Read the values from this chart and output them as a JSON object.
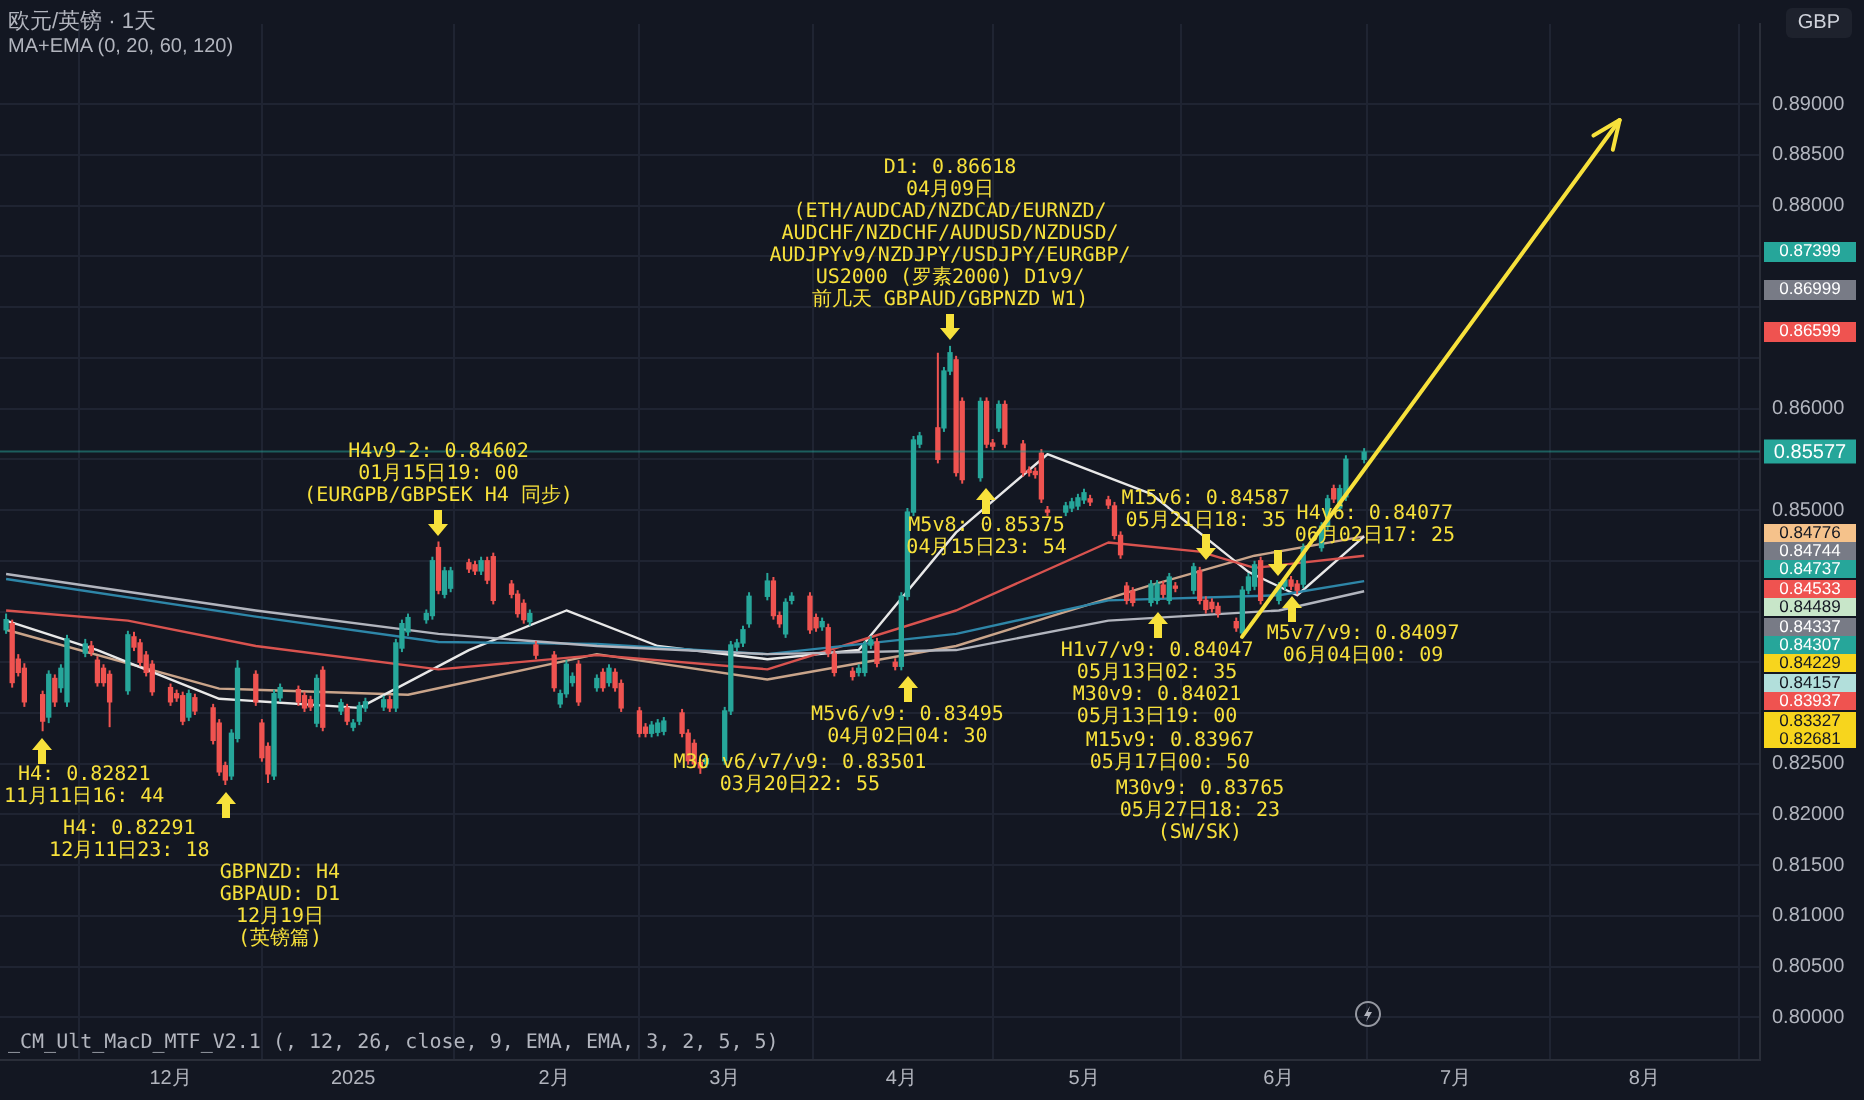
{
  "chart_data": {
    "type": "candlestick",
    "title": "欧元/英镑 · 1天",
    "subtitle": "MA+EMA (0, 20, 60, 120)",
    "x": [
      "2024-11-05",
      "2024-11-06",
      "2024-11-07",
      "2024-11-08",
      "2024-11-11",
      "2024-11-12",
      "2024-11-13",
      "2024-11-14",
      "2024-11-15",
      "2024-11-18",
      "2024-11-19",
      "2024-11-20",
      "2024-11-21",
      "2024-11-22",
      "2024-11-25",
      "2024-11-26",
      "2024-11-27",
      "2024-11-28",
      "2024-11-29",
      "2024-12-02",
      "2024-12-03",
      "2024-12-04",
      "2024-12-05",
      "2024-12-06",
      "2024-12-09",
      "2024-12-10",
      "2024-12-11",
      "2024-12-12",
      "2024-12-13",
      "2024-12-16",
      "2024-12-17",
      "2024-12-18",
      "2024-12-19",
      "2024-12-20",
      "2024-12-23",
      "2024-12-24",
      "2024-12-25",
      "2024-12-26",
      "2024-12-27",
      "2024-12-30",
      "2024-12-31",
      "2025-01-01",
      "2025-01-02",
      "2025-01-03",
      "2025-01-06",
      "2025-01-07",
      "2025-01-08",
      "2025-01-09",
      "2025-01-10",
      "2025-01-13",
      "2025-01-14",
      "2025-01-15",
      "2025-01-16",
      "2025-01-17",
      "2025-01-20",
      "2025-01-21",
      "2025-01-22",
      "2025-01-23",
      "2025-01-24",
      "2025-01-27",
      "2025-01-28",
      "2025-01-29",
      "2025-01-30",
      "2025-01-31",
      "2025-02-03",
      "2025-02-04",
      "2025-02-05",
      "2025-02-06",
      "2025-02-07",
      "2025-02-10",
      "2025-02-11",
      "2025-02-12",
      "2025-02-13",
      "2025-02-14",
      "2025-02-17",
      "2025-02-18",
      "2025-02-19",
      "2025-02-20",
      "2025-02-21",
      "2025-02-24",
      "2025-02-25",
      "2025-02-26",
      "2025-02-27",
      "2025-02-28",
      "2025-03-03",
      "2025-03-04",
      "2025-03-05",
      "2025-03-06",
      "2025-03-07",
      "2025-03-10",
      "2025-03-11",
      "2025-03-12",
      "2025-03-13",
      "2025-03-14",
      "2025-03-17",
      "2025-03-18",
      "2025-03-19",
      "2025-03-20",
      "2025-03-21",
      "2025-03-24",
      "2025-03-25",
      "2025-03-26",
      "2025-03-27",
      "2025-03-28",
      "2025-03-31",
      "2025-04-01",
      "2025-04-02",
      "2025-04-03",
      "2025-04-04",
      "2025-04-07",
      "2025-04-08",
      "2025-04-09",
      "2025-04-10",
      "2025-04-11",
      "2025-04-14",
      "2025-04-15",
      "2025-04-16",
      "2025-04-17",
      "2025-04-18",
      "2025-04-21",
      "2025-04-22",
      "2025-04-23",
      "2025-04-24",
      "2025-04-25",
      "2025-04-28",
      "2025-04-29",
      "2025-04-30",
      "2025-05-01",
      "2025-05-02",
      "2025-05-05",
      "2025-05-06",
      "2025-05-07",
      "2025-05-08",
      "2025-05-09",
      "2025-05-12",
      "2025-05-13",
      "2025-05-14",
      "2025-05-15",
      "2025-05-16",
      "2025-05-19",
      "2025-05-20",
      "2025-05-21",
      "2025-05-22",
      "2025-05-23",
      "2025-05-26",
      "2025-05-27",
      "2025-05-28",
      "2025-05-29",
      "2025-05-30",
      "2025-06-02",
      "2025-06-03",
      "2025-06-04",
      "2025-06-05",
      "2025-06-06",
      "2025-06-09",
      "2025-06-10",
      "2025-06-11",
      "2025-06-12",
      "2025-06-13",
      "2025-06-16"
    ],
    "ohlc": [
      [
        0.8382,
        0.8398,
        0.8378,
        0.8392
      ],
      [
        0.8388,
        0.8392,
        0.8325,
        0.833
      ],
      [
        0.8353,
        0.8358,
        0.8336,
        0.834
      ],
      [
        0.8344,
        0.8349,
        0.8306,
        0.8311
      ],
      [
        0.8318,
        0.8322,
        0.8282,
        0.8292
      ],
      [
        0.8296,
        0.8342,
        0.829,
        0.8338
      ],
      [
        0.8334,
        0.8338,
        0.8306,
        0.8311
      ],
      [
        0.8325,
        0.8348,
        0.832,
        0.8344
      ],
      [
        0.8311,
        0.8377,
        0.8306,
        0.8373
      ],
      [
        0.8359,
        0.8373,
        0.8355,
        0.8368
      ],
      [
        0.8366,
        0.8371,
        0.8356,
        0.836
      ],
      [
        0.8352,
        0.8356,
        0.8326,
        0.833
      ],
      [
        0.8344,
        0.8348,
        0.8326,
        0.833
      ],
      [
        0.8338,
        0.8342,
        0.8286,
        0.8311
      ],
      [
        0.8322,
        0.8381,
        0.8318,
        0.8377
      ],
      [
        0.8375,
        0.838,
        0.8361,
        0.8365
      ],
      [
        0.8369,
        0.8373,
        0.8346,
        0.835
      ],
      [
        0.8357,
        0.8361,
        0.8336,
        0.834
      ],
      [
        0.8348,
        0.8352,
        0.8317,
        0.8321
      ],
      [
        0.8325,
        0.8329,
        0.8307,
        0.8311
      ],
      [
        0.8319,
        0.8323,
        0.8311,
        0.8315
      ],
      [
        0.8317,
        0.8321,
        0.8288,
        0.8292
      ],
      [
        0.8296,
        0.8323,
        0.8292,
        0.8319
      ],
      [
        0.8315,
        0.8319,
        0.8298,
        0.8302
      ],
      [
        0.8305,
        0.8309,
        0.8269,
        0.8273
      ],
      [
        0.829,
        0.8294,
        0.8238,
        0.8242
      ],
      [
        0.8248,
        0.8252,
        0.8229,
        0.8234
      ],
      [
        0.8238,
        0.8284,
        0.8234,
        0.828
      ],
      [
        0.8275,
        0.8352,
        0.8271,
        0.8344
      ],
      [
        0.8338,
        0.8342,
        0.8307,
        0.8311
      ],
      [
        0.829,
        0.8294,
        0.8252,
        0.8256
      ],
      [
        0.8267,
        0.8271,
        0.8231,
        0.824
      ],
      [
        0.8238,
        0.8323,
        0.8234,
        0.8319
      ],
      [
        0.8315,
        0.8329,
        0.8311,
        0.8325
      ],
      [
        0.8323,
        0.8327,
        0.8307,
        0.8311
      ],
      [
        0.8317,
        0.8321,
        0.8301,
        0.8305
      ],
      [
        0.8313,
        0.8317,
        0.8302,
        0.8306
      ],
      [
        0.829,
        0.8338,
        0.8286,
        0.8334
      ],
      [
        0.8342,
        0.8346,
        0.8282,
        0.8286
      ],
      [
        0.8302,
        0.8314,
        0.8298,
        0.831
      ],
      [
        0.8305,
        0.8309,
        0.8288,
        0.8292
      ],
      [
        0.8286,
        0.8294,
        0.8282,
        0.829
      ],
      [
        0.8292,
        0.8311,
        0.8288,
        0.8307
      ],
      [
        0.8305,
        0.8315,
        0.8301,
        0.8311
      ],
      [
        0.8306,
        0.8317,
        0.8302,
        0.8313
      ],
      [
        0.8313,
        0.8317,
        0.8301,
        0.8305
      ],
      [
        0.8305,
        0.8373,
        0.8301,
        0.8369
      ],
      [
        0.8364,
        0.8392,
        0.836,
        0.8388
      ],
      [
        0.838,
        0.8398,
        0.8376,
        0.8394
      ],
      [
        0.8392,
        0.8402,
        0.8388,
        0.8398
      ],
      [
        0.8396,
        0.8454,
        0.8392,
        0.845
      ],
      [
        0.8463,
        0.8469,
        0.8417,
        0.8421
      ],
      [
        0.8417,
        0.8444,
        0.8413,
        0.844
      ],
      [
        0.8423,
        0.8444,
        0.8419,
        0.844
      ],
      [
        0.8448,
        0.8452,
        0.8438,
        0.8442
      ],
      [
        0.8446,
        0.845,
        0.8436,
        0.844
      ],
      [
        0.844,
        0.8454,
        0.8436,
        0.845
      ],
      [
        0.845,
        0.8454,
        0.8427,
        0.8431
      ],
      [
        0.8454,
        0.8458,
        0.8407,
        0.8411
      ],
      [
        0.8427,
        0.8431,
        0.8413,
        0.8417
      ],
      [
        0.8417,
        0.8421,
        0.8394,
        0.8398
      ],
      [
        0.8408,
        0.8412,
        0.8388,
        0.8392
      ],
      [
        0.839,
        0.8402,
        0.8386,
        0.8398
      ],
      [
        0.8367,
        0.8371,
        0.8353,
        0.8357
      ],
      [
        0.8357,
        0.8361,
        0.8321,
        0.8325
      ],
      [
        0.8309,
        0.8323,
        0.8305,
        0.8319
      ],
      [
        0.8319,
        0.8352,
        0.8315,
        0.8348
      ],
      [
        0.833,
        0.834,
        0.8326,
        0.8336
      ],
      [
        0.8348,
        0.8352,
        0.8307,
        0.8311
      ],
      [
        0.8325,
        0.8338,
        0.8321,
        0.8334
      ],
      [
        0.834,
        0.8344,
        0.8321,
        0.8325
      ],
      [
        0.833,
        0.8348,
        0.8326,
        0.8344
      ],
      [
        0.834,
        0.8344,
        0.8321,
        0.8325
      ],
      [
        0.8329,
        0.8333,
        0.8301,
        0.8305
      ],
      [
        0.8302,
        0.8306,
        0.8276,
        0.828
      ],
      [
        0.8286,
        0.829,
        0.8276,
        0.828
      ],
      [
        0.828,
        0.8292,
        0.8276,
        0.8288
      ],
      [
        0.8281,
        0.8294,
        0.8277,
        0.829
      ],
      [
        0.8282,
        0.8296,
        0.8278,
        0.8292
      ],
      [
        0.83,
        0.8304,
        0.8276,
        0.828
      ],
      [
        0.828,
        0.8284,
        0.8249,
        0.8253
      ],
      [
        0.827,
        0.8274,
        0.8246,
        0.825
      ],
      [
        0.8251,
        0.8255,
        0.824,
        0.8246
      ],
      [
        0.825,
        0.8259,
        0.8246,
        0.8255
      ],
      [
        0.8253,
        0.8306,
        0.8249,
        0.8302
      ],
      [
        0.8302,
        0.8371,
        0.8298,
        0.8367
      ],
      [
        0.8365,
        0.8373,
        0.8361,
        0.8369
      ],
      [
        0.8369,
        0.8386,
        0.8365,
        0.8382
      ],
      [
        0.8388,
        0.8419,
        0.8384,
        0.8415
      ],
      [
        0.8415,
        0.8438,
        0.8411,
        0.843
      ],
      [
        0.843,
        0.8434,
        0.8392,
        0.8396
      ],
      [
        0.8396,
        0.84,
        0.8384,
        0.8388
      ],
      [
        0.8378,
        0.8413,
        0.8374,
        0.8409
      ],
      [
        0.8411,
        0.8419,
        0.8407,
        0.8415
      ],
      [
        0.8415,
        0.8419,
        0.8378,
        0.8382
      ],
      [
        0.8394,
        0.8398,
        0.838,
        0.8384
      ],
      [
        0.8385,
        0.8394,
        0.8381,
        0.839
      ],
      [
        0.8384,
        0.8388,
        0.8355,
        0.8359
      ],
      [
        0.8358,
        0.8362,
        0.8336,
        0.834
      ],
      [
        0.8341,
        0.8345,
        0.8332,
        0.8336
      ],
      [
        0.834,
        0.8348,
        0.8336,
        0.8344
      ],
      [
        0.834,
        0.8371,
        0.8336,
        0.8367
      ],
      [
        0.8367,
        0.8376,
        0.8363,
        0.8372
      ],
      [
        0.837,
        0.8374,
        0.8345,
        0.8349
      ],
      [
        0.835,
        0.8354,
        0.8342,
        0.8346
      ],
      [
        0.8346,
        0.8419,
        0.8342,
        0.8415
      ],
      [
        0.8415,
        0.8502,
        0.8411,
        0.8498
      ],
      [
        0.8498,
        0.8573,
        0.8494,
        0.8569
      ],
      [
        0.8565,
        0.8577,
        0.8561,
        0.8573
      ],
      [
        0.8581,
        0.8655,
        0.8546,
        0.855
      ],
      [
        0.8581,
        0.8641,
        0.8577,
        0.8637
      ],
      [
        0.8637,
        0.86618,
        0.8633,
        0.8655
      ],
      [
        0.8648,
        0.8652,
        0.8533,
        0.8537
      ],
      [
        0.8607,
        0.8611,
        0.8526,
        0.853
      ],
      [
        0.8532,
        0.8611,
        0.8528,
        0.8607
      ],
      [
        0.8607,
        0.8611,
        0.8561,
        0.8565
      ],
      [
        0.8566,
        0.857,
        0.8559,
        0.8563
      ],
      [
        0.8581,
        0.8608,
        0.8577,
        0.8604
      ],
      [
        0.8604,
        0.8608,
        0.8561,
        0.8565
      ],
      [
        0.8565,
        0.8569,
        0.8533,
        0.8537
      ],
      [
        0.8539,
        0.8543,
        0.8533,
        0.8537
      ],
      [
        0.8538,
        0.8542,
        0.8531,
        0.8535
      ],
      [
        0.8556,
        0.856,
        0.8507,
        0.8511
      ],
      [
        0.85,
        0.8504,
        0.8494,
        0.8498
      ],
      [
        0.8498,
        0.8508,
        0.8494,
        0.8504
      ],
      [
        0.8502,
        0.8512,
        0.8498,
        0.8508
      ],
      [
        0.8504,
        0.8516,
        0.85,
        0.8512
      ],
      [
        0.851,
        0.8521,
        0.8506,
        0.8517
      ],
      [
        0.8511,
        0.8515,
        0.8504,
        0.8508
      ],
      [
        0.851,
        0.8514,
        0.8501,
        0.8505
      ],
      [
        0.8504,
        0.8508,
        0.8471,
        0.8475
      ],
      [
        0.8475,
        0.8479,
        0.8452,
        0.8456
      ],
      [
        0.8425,
        0.8429,
        0.8407,
        0.8411
      ],
      [
        0.842,
        0.8424,
        0.8405,
        0.8409
      ],
      [
        0.8409,
        0.8431,
        0.8405,
        0.8427
      ],
      [
        0.8411,
        0.8431,
        0.8407,
        0.8427
      ],
      [
        0.8426,
        0.843,
        0.8413,
        0.8417
      ],
      [
        0.8411,
        0.8438,
        0.8407,
        0.8434
      ],
      [
        0.8425,
        0.8429,
        0.8419,
        0.8423
      ],
      [
        0.8421,
        0.8448,
        0.8417,
        0.8444
      ],
      [
        0.844,
        0.8444,
        0.8407,
        0.8411
      ],
      [
        0.8411,
        0.8415,
        0.8398,
        0.8402
      ],
      [
        0.8409,
        0.8413,
        0.8399,
        0.8403
      ],
      [
        0.8405,
        0.8409,
        0.8394,
        0.8398
      ],
      [
        0.839,
        0.8394,
        0.838,
        0.8384
      ],
      [
        0.8379,
        0.8425,
        0.8375,
        0.8421
      ],
      [
        0.8421,
        0.8438,
        0.8417,
        0.8434
      ],
      [
        0.8425,
        0.845,
        0.8421,
        0.8446
      ],
      [
        0.845,
        0.8454,
        0.8407,
        0.8411
      ],
      [
        0.8411,
        0.8429,
        0.8407,
        0.8425
      ],
      [
        0.8425,
        0.8435,
        0.8421,
        0.8431
      ],
      [
        0.8431,
        0.8435,
        0.8421,
        0.8425
      ],
      [
        0.8427,
        0.8431,
        0.8417,
        0.8421
      ],
      [
        0.8427,
        0.8467,
        0.8423,
        0.8463
      ],
      [
        0.8463,
        0.8488,
        0.8459,
        0.8484
      ],
      [
        0.8484,
        0.8515,
        0.848,
        0.8511
      ],
      [
        0.8521,
        0.8525,
        0.8507,
        0.8511
      ],
      [
        0.8502,
        0.8525,
        0.8498,
        0.8521
      ],
      [
        0.8513,
        0.8554,
        0.8509,
        0.855
      ],
      [
        0.855,
        0.8561,
        0.8546,
        0.8557
      ]
    ],
    "series": [
      {
        "type": "line",
        "color": "#b2b5be",
        "x": [
          "2024-11-05",
          "2024-12-16",
          "2025-01-15",
          "2025-02-10",
          "2025-03-10",
          "2025-04-10",
          "2025-05-05",
          "2025-06-02",
          "2025-06-16"
        ],
        "values": [
          0.8437,
          0.8401,
          0.8378,
          0.8366,
          0.8358,
          0.8362,
          0.8391,
          0.8401,
          0.842
        ]
      },
      {
        "type": "line",
        "color": "#2e86a8",
        "x": [
          "2024-11-05",
          "2024-12-16",
          "2025-01-15",
          "2025-02-10",
          "2025-03-10",
          "2025-04-10",
          "2025-05-05",
          "2025-06-02",
          "2025-06-16"
        ],
        "values": [
          0.8432,
          0.8395,
          0.837,
          0.8368,
          0.8358,
          0.8378,
          0.8411,
          0.8416,
          0.843
        ]
      },
      {
        "type": "line",
        "color": "#d9534f",
        "x": [
          "2024-11-05",
          "2024-11-25",
          "2024-12-16",
          "2025-01-15",
          "2025-02-10",
          "2025-03-10",
          "2025-04-10",
          "2025-05-05",
          "2025-05-20",
          "2025-05-29",
          "2025-06-16"
        ],
        "values": [
          0.8401,
          0.8391,
          0.8366,
          0.8343,
          0.8357,
          0.8343,
          0.8401,
          0.8468,
          0.8459,
          0.8443,
          0.8455
        ]
      },
      {
        "type": "line",
        "color": "#e8e8e8",
        "x": [
          "2024-11-05",
          "2024-11-20",
          "2024-12-10",
          "2025-01-02",
          "2025-01-20",
          "2025-02-05",
          "2025-02-20",
          "2025-03-10",
          "2025-03-25",
          "2025-04-10",
          "2025-04-25",
          "2025-05-12",
          "2025-05-28",
          "2025-06-05",
          "2025-06-16"
        ],
        "values": [
          0.8391,
          0.8362,
          0.8314,
          0.8305,
          0.8362,
          0.8401,
          0.8366,
          0.8353,
          0.8362,
          0.8478,
          0.8555,
          0.8516,
          0.8439,
          0.8416,
          0.8474
        ]
      },
      {
        "type": "line",
        "color": "#c9a48a",
        "x": [
          "2024-11-05",
          "2024-12-10",
          "2025-01-10",
          "2025-02-10",
          "2025-03-10",
          "2025-04-10",
          "2025-05-12",
          "2025-05-29",
          "2025-06-16"
        ],
        "values": [
          0.8382,
          0.8324,
          0.8318,
          0.8358,
          0.8333,
          0.8366,
          0.8426,
          0.8455,
          0.8474
        ]
      }
    ],
    "xlim": [
      "2024-11-04",
      "2025-08-20"
    ],
    "xticks": [
      {
        "value": "2024-12-02",
        "label": "12月"
      },
      {
        "value": "2025-01-01",
        "label": "2025"
      },
      {
        "value": "2025-02-03",
        "label": "2月"
      },
      {
        "value": "2025-03-03",
        "label": "3月"
      },
      {
        "value": "2025-04-01",
        "label": "4月"
      },
      {
        "value": "2025-05-01",
        "label": "5月"
      },
      {
        "value": "2025-06-02",
        "label": "6月"
      },
      {
        "value": "2025-07-01",
        "label": "7月"
      },
      {
        "value": "2025-08-01",
        "label": "8月"
      }
    ],
    "ylim": [
      0.7958,
      0.8979
    ],
    "yticks": [
      {
        "value": 0.8,
        "label": "0.80000"
      },
      {
        "value": 0.805,
        "label": "0.80500"
      },
      {
        "value": 0.81,
        "label": "0.81000"
      },
      {
        "value": 0.815,
        "label": "0.81500"
      },
      {
        "value": 0.82,
        "label": "0.82000"
      },
      {
        "value": 0.825,
        "label": "0.82500"
      },
      {
        "value": 0.83,
        "label": null
      },
      {
        "value": 0.835,
        "label": null
      },
      {
        "value": 0.84,
        "label": null
      },
      {
        "value": 0.845,
        "label": null
      },
      {
        "value": 0.85,
        "label": "0.85000"
      },
      {
        "value": 0.855,
        "label": null
      },
      {
        "value": 0.86,
        "label": "0.86000"
      },
      {
        "value": 0.865,
        "label": null
      },
      {
        "value": 0.87,
        "label": null
      },
      {
        "value": 0.875,
        "label": null
      },
      {
        "value": 0.88,
        "label": "0.88000"
      },
      {
        "value": 0.885,
        "label": "0.88500"
      },
      {
        "value": 0.89,
        "label": "0.89000"
      }
    ],
    "grid": true,
    "ref_lines": [
      {
        "axis": "y",
        "value": 0.85577,
        "label": "0.85577",
        "color": "#26a69a"
      }
    ],
    "annotations": [
      "GBP",
      "_CM_Ult_MacD_MTF_V2.1 (, 12, 26, close, 9, EMA, EMA, 3, 2, 5, 5)",
      "0.87399",
      "0.86999",
      "0.86599",
      "0.84776",
      "0.84744",
      "0.84737",
      "0.84533",
      "0.84489",
      "0.84337",
      "0.84307",
      "0.84229",
      "0.84157",
      "0.83937",
      "0.83327",
      "0.82681",
      "GBPNZD: H4\nGBPAUD: D1\n12月19日\n(英镑篇)",
      "M30 v6/v7/v9: 0.83501\n03月20日22: 55",
      "M15v9: 0.83967\n05月17日00: 50",
      "M30v9: 0.83765\n05月27日18: 23\n(SW/SK)",
      {
        "text": "H4: 0.82821\n11月11日16: 44",
        "x": "2024-11-11",
        "y": 0.8282
      },
      {
        "text": "H4: 0.82291\n12月11日23: 18",
        "x": "2024-12-11",
        "y": 0.8229
      },
      {
        "text": "H4v9-2: 0.84602\n01月15日19: 00\n(EURGPB/GBPSEK H4 同步)",
        "x": "2025-01-15",
        "y": 0.8469
      },
      {
        "text": "D1: 0.86618\n04月09日\n(ETH/AUDCAD/NZDCAD/EURNZD/\nAUDCHF/NZDCHF/AUDUSD/NZDUSD/\nAUDJPYv9/NZDJPY/USDJPY/EURGBP/\nUS2000 (罗素2000) D1v9/\n前几天 GBPAUD/GBPNZD W1)",
        "x": "2025-04-09",
        "y": 0.86618
      },
      {
        "text": "M5v6/v9: 0.83495\n04月02日04: 30",
        "x": "2025-04-02",
        "y": 0.8342
      },
      {
        "text": "M5v8: 0.85375\n04月15日23: 54",
        "x": "2025-04-15",
        "y": 0.8528
      },
      {
        "text": "M15v6: 0.84587\n05月21日18: 35",
        "x": "2025-05-21",
        "y": 0.8444
      },
      {
        "text": "H1v7/v9: 0.84047\n05月13日02: 35\nM30v9: 0.84021\n05月13日19: 00",
        "x": "2025-05-13",
        "y": 0.8405
      },
      {
        "text": "H4v6: 0.84077\n06月02日17: 25",
        "x": "2025-06-02",
        "y": 0.8429
      },
      {
        "text": "M5v7/v9: 0.84097\n06月04日00: 09",
        "x": "2025-06-04",
        "y": 0.8421
      }
    ]
  }
}
